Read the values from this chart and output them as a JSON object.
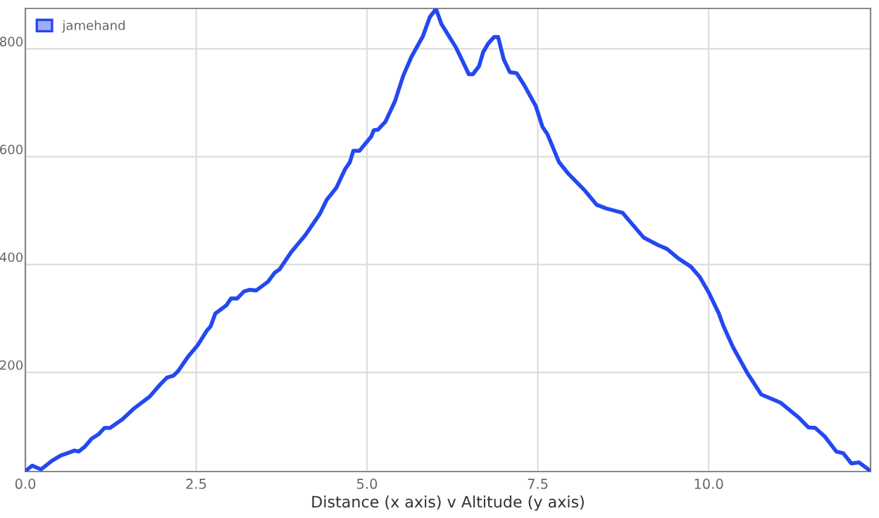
{
  "chart_data": {
    "type": "line",
    "xlabel": "Distance (x axis) v Altitude (y axis)",
    "xlim": [
      0,
      12.37
    ],
    "ylim": [
      16,
      875
    ],
    "xticks": [
      {
        "value": 0,
        "label": "0.0"
      },
      {
        "value": 2.5,
        "label": "2.5"
      },
      {
        "value": 5,
        "label": "5.0"
      },
      {
        "value": 7.5,
        "label": "7.5"
      },
      {
        "value": 10,
        "label": "10.0"
      }
    ],
    "yticks": [
      200,
      400,
      600,
      800
    ],
    "grid": true,
    "legend": "top left",
    "marker": "none",
    "line_style": "solid",
    "series": [
      {
        "name": "jamehand",
        "color": "#2448f0",
        "x": [
          0,
          0.1,
          0.23,
          0.39,
          0.52,
          0.66,
          0.72,
          0.78,
          0.87,
          0.97,
          1.07,
          1.16,
          1.24,
          1.42,
          1.59,
          1.82,
          1.97,
          2.07,
          2.17,
          2.24,
          2.38,
          2.52,
          2.66,
          2.71,
          2.78,
          2.94,
          3.01,
          3.1,
          3.2,
          3.28,
          3.38,
          3.55,
          3.65,
          3.72,
          3.89,
          4.1,
          4.31,
          4.41,
          4.55,
          4.68,
          4.75,
          4.8,
          4.89,
          5.06,
          5.1,
          5.16,
          5.27,
          5.41,
          5.53,
          5.65,
          5.82,
          5.92,
          6.01,
          6.09,
          6.3,
          6.4,
          6.49,
          6.55,
          6.64,
          6.7,
          6.78,
          6.86,
          6.92,
          7.0,
          7.09,
          7.19,
          7.3,
          7.47,
          7.57,
          7.64,
          7.81,
          7.95,
          8.19,
          8.36,
          8.5,
          8.74,
          8.84,
          9.05,
          9.26,
          9.39,
          9.56,
          9.74,
          9.87,
          10.01,
          10.15,
          10.22,
          10.36,
          10.57,
          10.77,
          11.05,
          11.32,
          11.46,
          11.56,
          11.7,
          11.87,
          11.97,
          12.09,
          12.2,
          12.37
        ],
        "values": [
          17,
          27,
          20,
          36,
          46,
          52,
          55,
          53,
          62,
          77,
          85,
          97,
          97,
          113,
          133,
          155,
          177,
          190,
          194,
          203,
          229,
          250,
          278,
          285,
          309,
          324,
          337,
          337,
          350,
          353,
          352,
          368,
          385,
          391,
          423,
          455,
          494,
          520,
          542,
          577,
          590,
          611,
          611,
          637,
          649,
          650,
          665,
          703,
          750,
          785,
          824,
          859,
          874,
          846,
          803,
          777,
          753,
          753,
          768,
          794,
          811,
          822,
          822,
          781,
          757,
          755,
          733,
          694,
          655,
          642,
          590,
          568,
          537,
          511,
          504,
          496,
          481,
          450,
          436,
          429,
          411,
          396,
          377,
          346,
          309,
          285,
          246,
          198,
          159,
          144,
          116,
          98,
          97,
          81,
          53,
          50,
          31,
          33,
          17
        ]
      }
    ]
  }
}
